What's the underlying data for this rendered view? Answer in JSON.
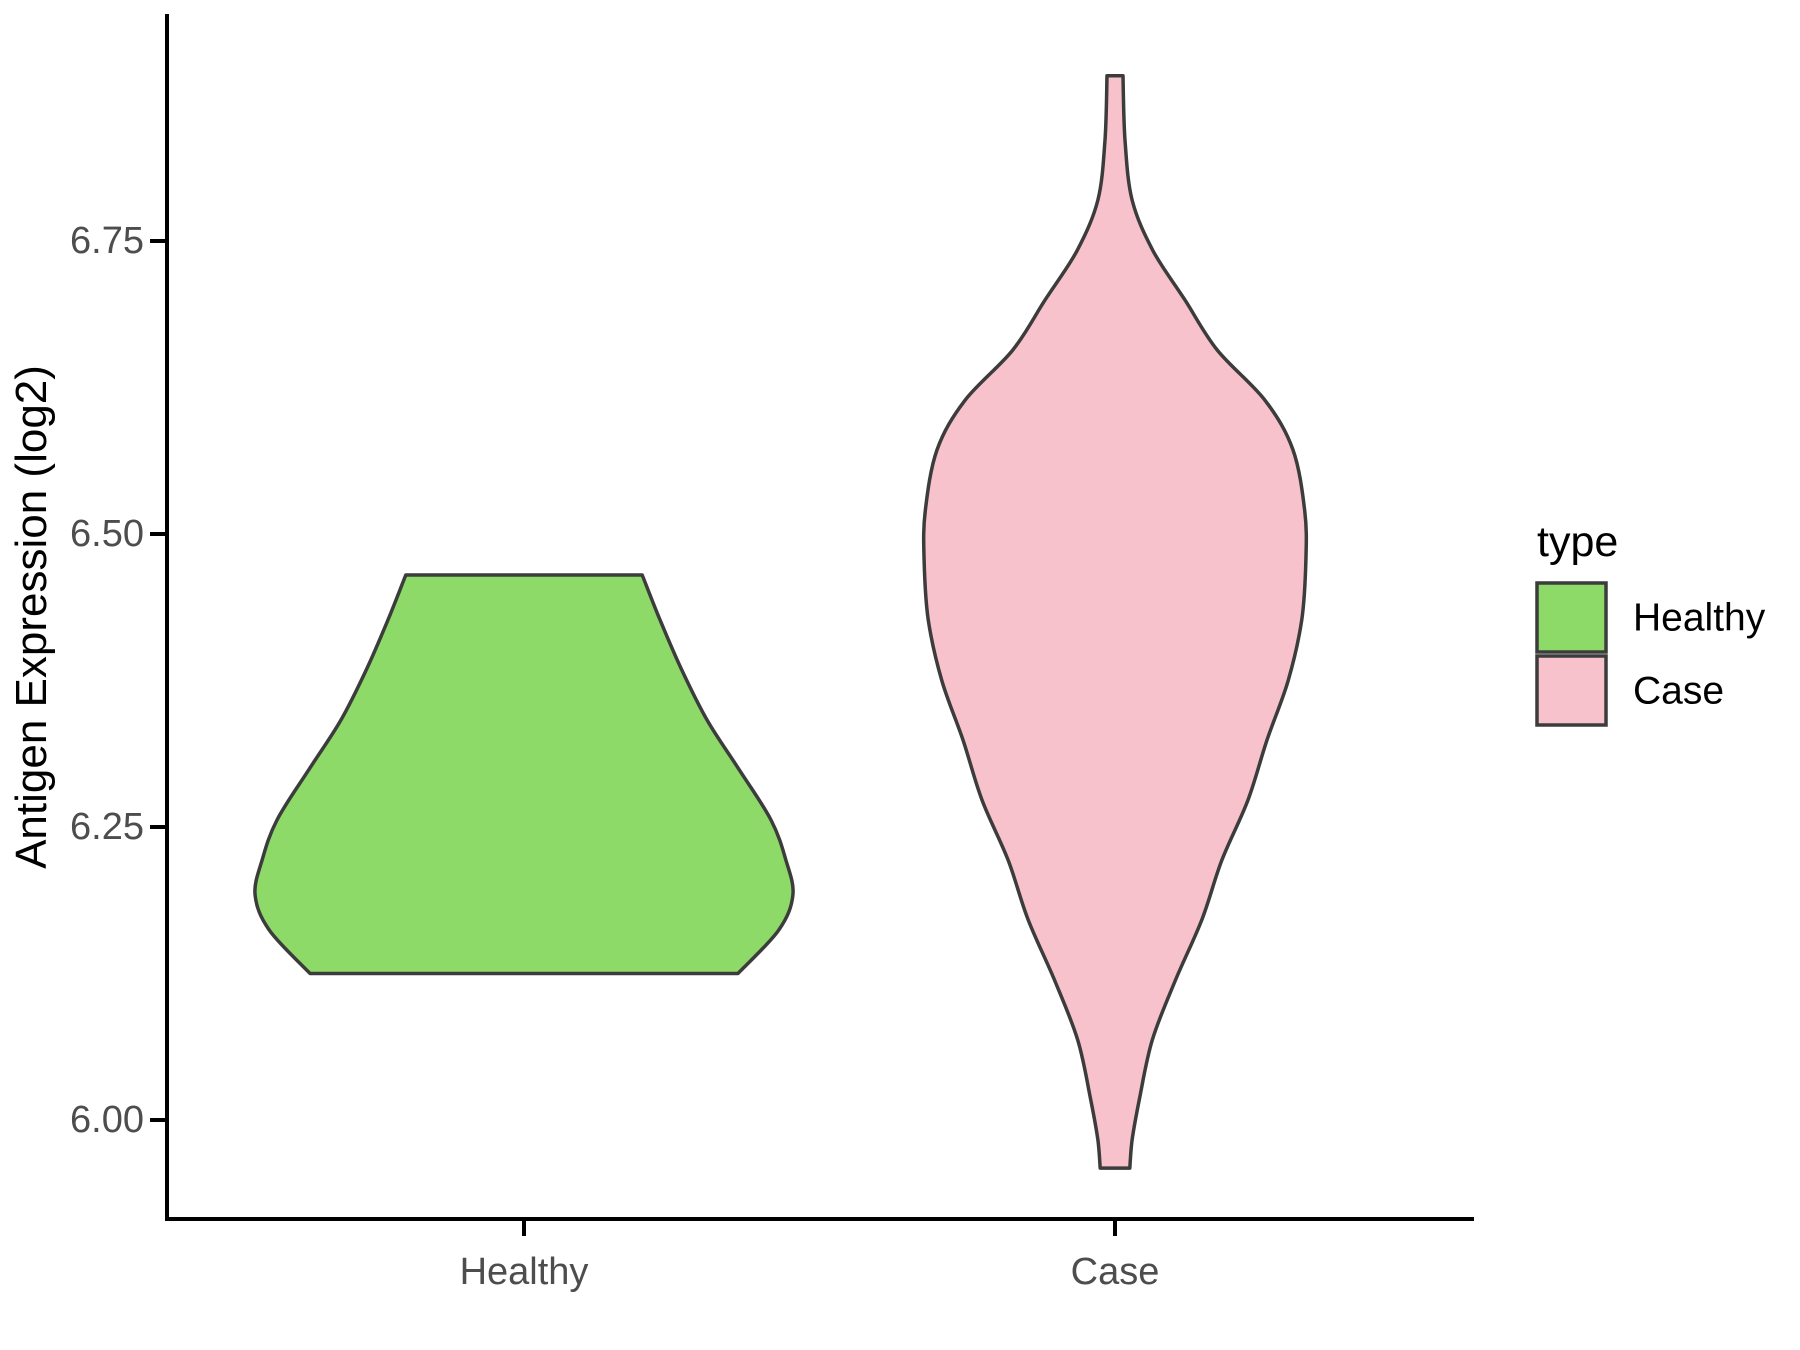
{
  "figure": {
    "background": "#FFFFFF"
  },
  "y_axis": {
    "title": "Antigen Expression (log2)",
    "text_color": "#4D4D4D",
    "line_color": "#000000",
    "ticks": [
      {
        "label": "6.00",
        "value": 6.0
      },
      {
        "label": "6.25",
        "value": 6.25
      },
      {
        "label": "6.50",
        "value": 6.5
      },
      {
        "label": "6.75",
        "value": 6.75
      }
    ]
  },
  "x_axis": {
    "text_color": "#4D4D4D",
    "categories": [
      {
        "label": "Healthy"
      },
      {
        "label": "Case"
      }
    ]
  },
  "legend": {
    "title": "type",
    "entries": [
      {
        "label": "Healthy",
        "swatch_color": "#8EDA69"
      },
      {
        "label": "Case",
        "swatch_color": "#F8C2CD"
      }
    ]
  },
  "chart_data": {
    "type": "violin",
    "title": "",
    "xlabel": "",
    "ylabel": "Antigen Expression (log2)",
    "categories": [
      "Healthy",
      "Case"
    ],
    "ylim_shown": [
      5.91,
      6.94
    ],
    "legend_position": "right",
    "grid": false,
    "series": [
      {
        "name": "Healthy",
        "fill": "#8EDA69",
        "outline": "#3C3C3C",
        "min": 6.13,
        "max": 6.47,
        "widest_at": 6.19,
        "max_halfwidth": 0.455,
        "profile": [
          [
            6.465,
            0.2
          ],
          [
            6.427,
            0.23
          ],
          [
            6.384,
            0.267
          ],
          [
            6.341,
            0.31
          ],
          [
            6.299,
            0.364
          ],
          [
            6.256,
            0.418
          ],
          [
            6.222,
            0.443
          ],
          [
            6.192,
            0.455
          ],
          [
            6.162,
            0.431
          ],
          [
            6.125,
            0.362
          ]
        ]
      },
      {
        "name": "Case",
        "fill": "#F8C2CD",
        "outline": "#3C3C3C",
        "min": 5.96,
        "max": 6.89,
        "widest_at": 6.49,
        "max_halfwidth": 0.323,
        "profile": [
          [
            6.891,
            0.0135
          ],
          [
            6.836,
            0.017
          ],
          [
            6.785,
            0.029
          ],
          [
            6.742,
            0.064
          ],
          [
            6.7,
            0.118
          ],
          [
            6.657,
            0.173
          ],
          [
            6.614,
            0.254
          ],
          [
            6.572,
            0.301
          ],
          [
            6.52,
            0.321
          ],
          [
            6.478,
            0.323
          ],
          [
            6.427,
            0.316
          ],
          [
            6.375,
            0.293
          ],
          [
            6.324,
            0.257
          ],
          [
            6.273,
            0.225
          ],
          [
            6.222,
            0.181
          ],
          [
            6.171,
            0.147
          ],
          [
            6.119,
            0.102
          ],
          [
            6.068,
            0.063
          ],
          [
            6.017,
            0.041
          ],
          [
            5.983,
            0.029
          ],
          [
            5.959,
            0.025
          ]
        ]
      }
    ]
  }
}
